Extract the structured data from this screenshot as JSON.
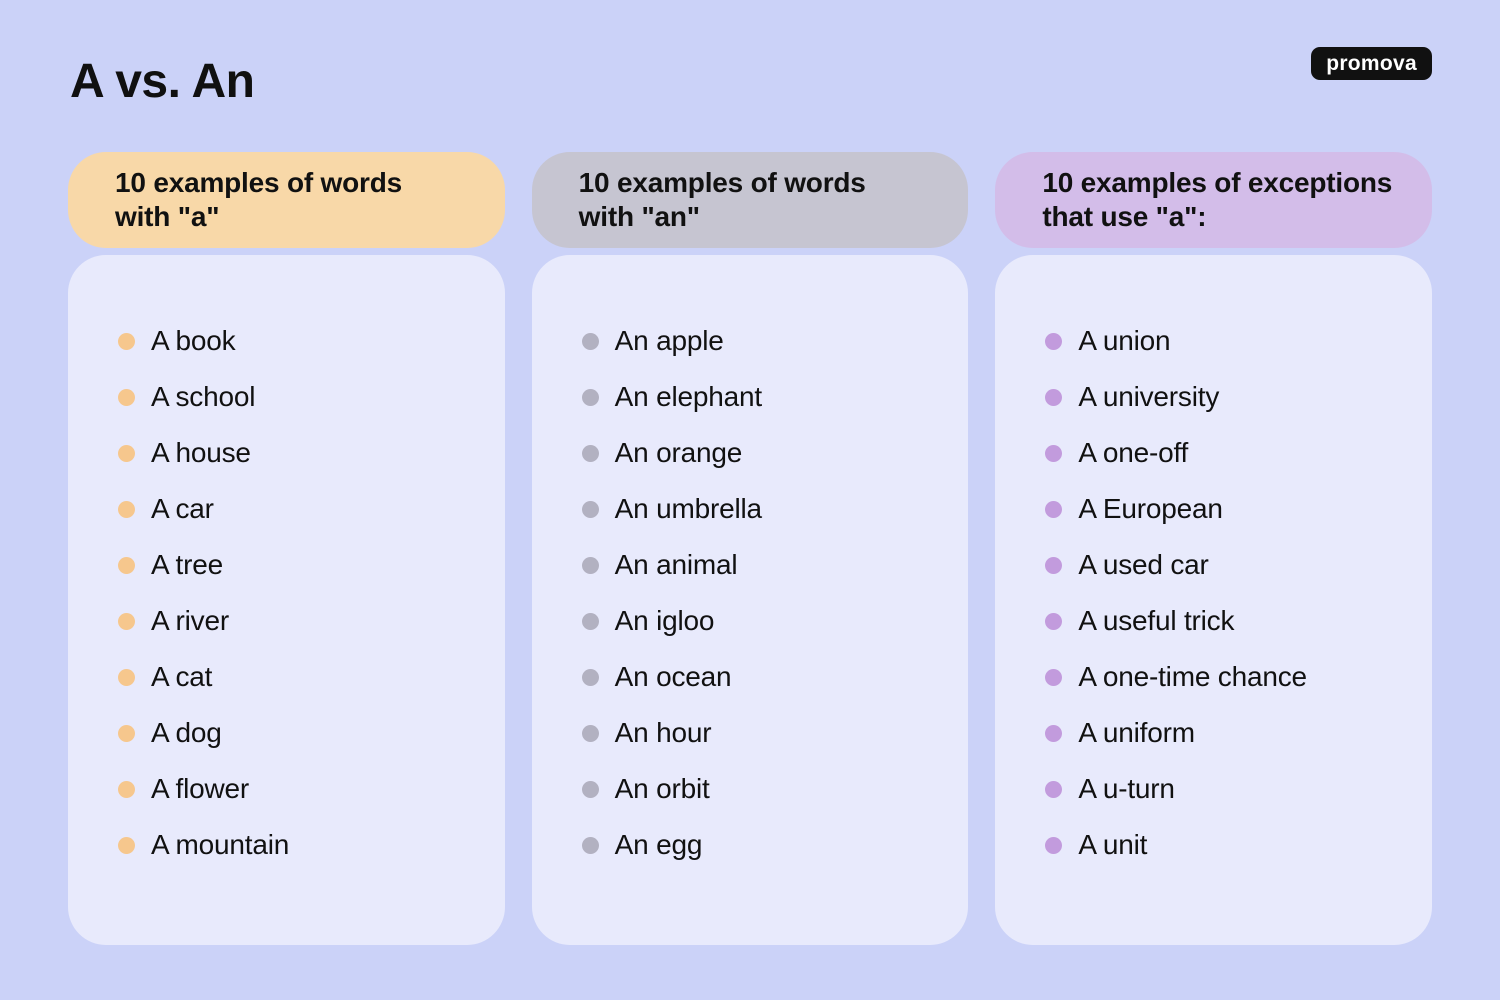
{
  "page": {
    "title": "A vs. An",
    "background_color": "#cbd2f8",
    "card_color": "#e8eafc",
    "text_color": "#111111"
  },
  "logo": {
    "text": "promova",
    "background_color": "#111111",
    "text_color": "#ffffff"
  },
  "columns": [
    {
      "header_label": "10 examples of words\nwith \"a\"",
      "header_color": "#f8d8a8",
      "bullet_color": "#f6c78d",
      "items": [
        "A book",
        "A school",
        "A house",
        "A car",
        "A tree",
        "A river",
        "A cat",
        "A dog",
        "A flower",
        "A mountain"
      ]
    },
    {
      "header_label": "10 examples of words\nwith \"an\"",
      "header_color": "#c6c5d1",
      "bullet_color": "#b2b1c1",
      "items": [
        "An apple",
        "An elephant",
        "An orange",
        "An umbrella",
        "An animal",
        "An igloo",
        "An ocean",
        "An hour",
        "An orbit",
        "An egg"
      ]
    },
    {
      "header_label": "10 examples of exceptions\nthat use \"a\":",
      "header_color": "#d3bde9",
      "bullet_color": "#c29bdd",
      "items": [
        "A union",
        "A university",
        "A one-off",
        "A European",
        "A used car",
        "A useful trick",
        "A one-time chance",
        "A uniform",
        "A u-turn",
        "A unit"
      ]
    }
  ]
}
